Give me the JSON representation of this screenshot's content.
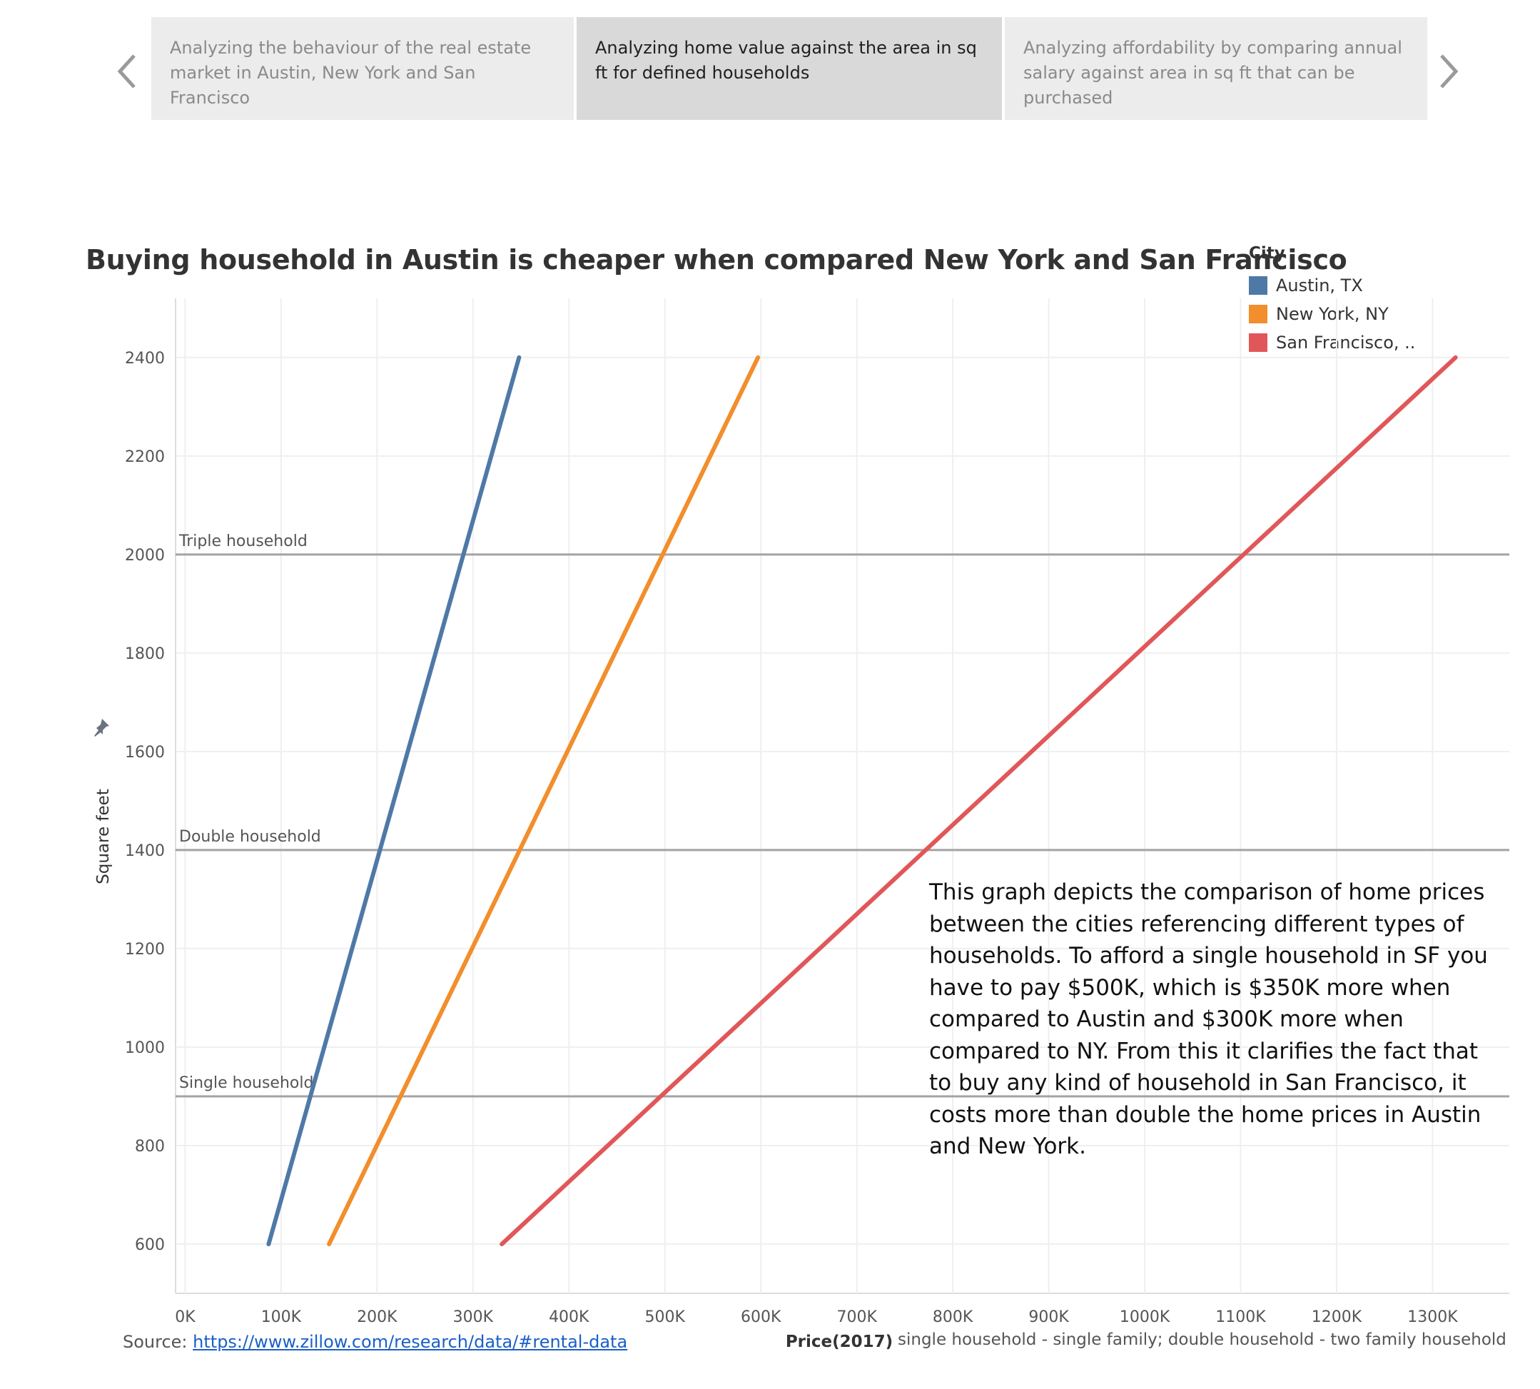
{
  "story_nav": {
    "tabs": [
      {
        "label": "Analyzing the behaviour of the real estate market in Austin, New York and San Francisco",
        "active": false
      },
      {
        "label": "Analyzing home value against the area in sq ft for defined households",
        "active": true
      },
      {
        "label": "Analyzing affordability by comparing annual salary against area in sq ft that can be purchased",
        "active": false
      }
    ],
    "prev_icon": "chevron-left-icon",
    "next_icon": "chevron-right-icon"
  },
  "chart_data": {
    "type": "line",
    "title": "Buying household in Austin is cheaper when compared New York and San Francisco",
    "xlabel": "Price(2017)",
    "ylabel": "Square feet",
    "xlim": [
      -10000,
      1380000
    ],
    "ylim": [
      500,
      2520
    ],
    "x_ticks": [
      {
        "value": 0,
        "label": "0K"
      },
      {
        "value": 100000,
        "label": "100K"
      },
      {
        "value": 200000,
        "label": "200K"
      },
      {
        "value": 300000,
        "label": "300K"
      },
      {
        "value": 400000,
        "label": "400K"
      },
      {
        "value": 500000,
        "label": "500K"
      },
      {
        "value": 600000,
        "label": "600K"
      },
      {
        "value": 700000,
        "label": "700K"
      },
      {
        "value": 800000,
        "label": "800K"
      },
      {
        "value": 900000,
        "label": "900K"
      },
      {
        "value": 1000000,
        "label": "1000K"
      },
      {
        "value": 1100000,
        "label": "1100K"
      },
      {
        "value": 1200000,
        "label": "1200K"
      },
      {
        "value": 1300000,
        "label": "1300K"
      }
    ],
    "y_ticks": [
      600,
      800,
      1000,
      1200,
      1400,
      1600,
      1800,
      2000,
      2200,
      2400
    ],
    "grid": true,
    "legend": {
      "title": "City",
      "placement": "top-right"
    },
    "series": [
      {
        "name": "Austin, TX",
        "color": "#4e79a7",
        "points": [
          {
            "x": 87000,
            "y": 600
          },
          {
            "x": 348000,
            "y": 2400
          }
        ]
      },
      {
        "name": "New York, NY",
        "color": "#f28e2b",
        "points": [
          {
            "x": 150000,
            "y": 600
          },
          {
            "x": 597000,
            "y": 2400
          }
        ]
      },
      {
        "name": "San Francisco, ..",
        "color": "#e15759",
        "points": [
          {
            "x": 330000,
            "y": 600
          },
          {
            "x": 1324000,
            "y": 2400
          }
        ]
      }
    ],
    "reference_lines": [
      {
        "label": "Triple household",
        "y": 2000
      },
      {
        "label": "Double household",
        "y": 1400
      },
      {
        "label": "Single household",
        "y": 900
      }
    ],
    "annotation": "This graph depicts the comparison of home prices between the cities referencing different types of households. To afford a single household in SF you have to pay $500K, which is $350K  more when compared to Austin and $300K more when compared to NY. From this it clarifies the fact that to buy any kind of household in San Francisco, it costs more than double the home prices in Austin and New York."
  },
  "footer": {
    "source_label": "Source:",
    "source_link": "https://www.zillow.com/research/data/#rental-data",
    "note": "single household - single family; double household - two family household"
  },
  "icons": {
    "axis_pin": "pin-icon"
  }
}
